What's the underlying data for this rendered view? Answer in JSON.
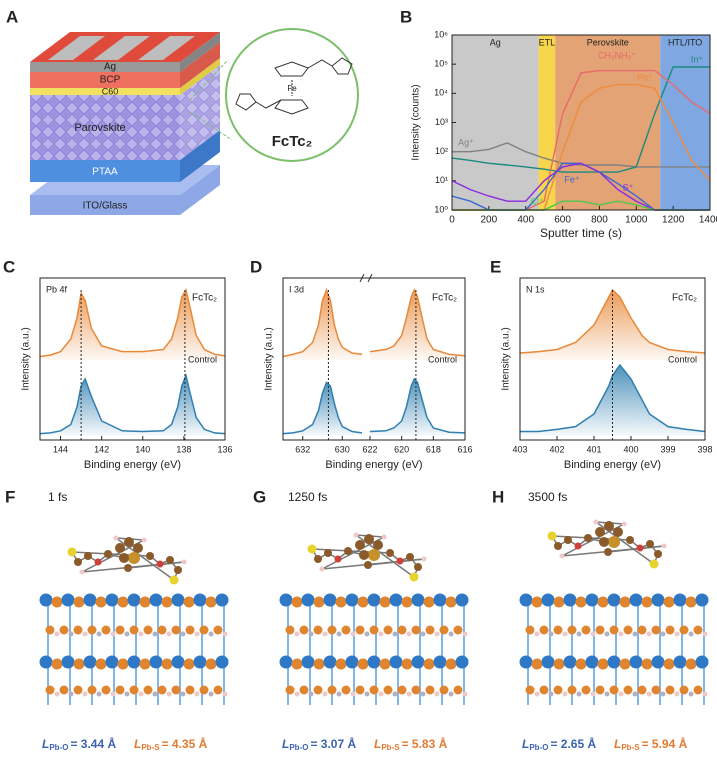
{
  "panel_labels": [
    "A",
    "B",
    "C",
    "D",
    "E",
    "F",
    "G",
    "H"
  ],
  "device": {
    "layers": [
      "Ag",
      "BCP",
      "C60",
      "Parovskite",
      "PTAA",
      "ITO/Glass"
    ],
    "molecule": {
      "atom": "Fe",
      "name": "FcTc₂"
    }
  },
  "chart_data": {
    "type": "line",
    "log_y": true,
    "xlabel": "Sputter time (s)",
    "ylabel": "Intensity (counts)",
    "xlim": [
      0,
      1400
    ],
    "xticks": [
      0,
      200,
      400,
      600,
      800,
      1000,
      1200,
      1400
    ],
    "ylim": [
      1,
      1000000
    ],
    "yticks": [
      {
        "value": 1,
        "label": "10⁰"
      },
      {
        "value": 10,
        "label": "10¹"
      },
      {
        "value": 100,
        "label": "10²"
      },
      {
        "value": 1000,
        "label": "10³"
      },
      {
        "value": 10000,
        "label": "10⁴"
      },
      {
        "value": 100000,
        "label": "10⁵"
      },
      {
        "value": 1000000,
        "label": "10⁶"
      }
    ],
    "regions": [
      {
        "name": "Ag",
        "start": 0,
        "end": 470,
        "color": "#c9c9c9"
      },
      {
        "name": "ETL",
        "start": 470,
        "end": 560,
        "color": "#f8d64c"
      },
      {
        "name": "Perovskite",
        "start": 560,
        "end": 1130,
        "color": "#e3a374"
      },
      {
        "name": "HTL/ITO",
        "start": 1130,
        "end": 1400,
        "color": "#7fa8e2"
      }
    ],
    "x": [
      0,
      100,
      200,
      300,
      400,
      500,
      600,
      700,
      800,
      900,
      1000,
      1100,
      1200,
      1300,
      1400
    ],
    "series": [
      {
        "name": "Ag⁺",
        "color": "#808080",
        "values": [
          100,
          100,
          120,
          200,
          100,
          60,
          40,
          35,
          35,
          35,
          30,
          30,
          30,
          30,
          30
        ]
      },
      {
        "name": "In⁺",
        "color": "#1a8a80",
        "values": [
          60,
          50,
          40,
          35,
          30,
          25,
          20,
          20,
          20,
          20,
          30,
          2000,
          80000,
          80000,
          80000
        ]
      },
      {
        "name": "CH₃NH₃⁺",
        "color": "#e86a6a",
        "values": [
          1,
          1,
          1,
          1,
          1,
          2,
          2000,
          50000,
          60000,
          60000,
          60000,
          60000,
          20000,
          5000,
          2000
        ]
      },
      {
        "name": "Pb⁺",
        "color": "#f08a3c",
        "values": [
          1,
          1,
          1,
          1,
          1,
          1,
          100,
          5000,
          15000,
          20000,
          20000,
          15000,
          1000,
          50,
          10
        ]
      },
      {
        "name": "Fe⁺",
        "color": "#3a6ad0",
        "values": [
          3,
          2,
          1,
          1,
          1,
          5,
          40,
          40,
          20,
          8,
          3,
          1,
          1,
          1,
          1
        ]
      },
      {
        "name": "S⁺",
        "color": "#8a2be2",
        "values": [
          10,
          5,
          3,
          2,
          2,
          10,
          30,
          40,
          20,
          5,
          2,
          1,
          1,
          1,
          1
        ]
      },
      {
        "name": "Cl⁺",
        "color": "#4fc84f",
        "values": [
          1,
          1,
          1,
          1,
          1,
          1,
          2,
          2,
          1.5,
          2,
          1.5,
          1,
          1,
          1,
          1
        ]
      }
    ]
  },
  "xps_panels": [
    {
      "element": "Pb 4f",
      "xlabel": "Binding energy (eV)",
      "ylabel": "Intensity (a.u.)",
      "series_names": [
        "FcTc₂",
        "Control"
      ],
      "colors": [
        "#e8893a",
        "#2f7fb0"
      ],
      "segments": [
        {
          "xlim": [
            145,
            136
          ],
          "xticks": [
            144,
            142,
            140,
            138,
            136
          ],
          "x": [
            145,
            144.5,
            144,
            143.5,
            143.2,
            143,
            142.8,
            142.5,
            142,
            141,
            140,
            139,
            138.6,
            138.3,
            138.1,
            137.9,
            137.7,
            137.4,
            137,
            136.5,
            136
          ],
          "values": [
            [
              0.05,
              0.07,
              0.12,
              0.3,
              0.6,
              0.95,
              0.85,
              0.45,
              0.2,
              0.12,
              0.12,
              0.15,
              0.3,
              0.6,
              0.9,
              1.0,
              0.75,
              0.35,
              0.15,
              0.08,
              0.06
            ],
            [
              0.02,
              0.03,
              0.06,
              0.15,
              0.4,
              0.7,
              0.8,
              0.55,
              0.2,
              0.06,
              0.05,
              0.06,
              0.15,
              0.4,
              0.7,
              0.85,
              0.6,
              0.25,
              0.08,
              0.03,
              0.02
            ]
          ],
          "peak_lines": [
            143,
            137.95
          ]
        }
      ]
    },
    {
      "element": "I 3d",
      "xlabel": "Binding energy (eV)",
      "ylabel": "Intensity (a.u.)",
      "series_names": [
        "FcTc₂",
        "Control"
      ],
      "colors": [
        "#e8893a",
        "#2f7fb0"
      ],
      "segments": [
        {
          "xlim": [
            633,
            629
          ],
          "xticks": [
            632,
            630
          ],
          "x": [
            633,
            632.5,
            632,
            631.5,
            631.2,
            631,
            630.8,
            630.6,
            630.4,
            630.2,
            630,
            629.5,
            629
          ],
          "values": [
            [
              0.05,
              0.08,
              0.12,
              0.25,
              0.5,
              0.85,
              1.0,
              0.85,
              0.5,
              0.3,
              0.18,
              0.1,
              0.08
            ],
            [
              0.02,
              0.03,
              0.06,
              0.15,
              0.35,
              0.6,
              0.75,
              0.7,
              0.45,
              0.25,
              0.12,
              0.05,
              0.03
            ]
          ],
          "peak_lines": [
            630.7
          ]
        },
        {
          "xlim": [
            622,
            616
          ],
          "xticks": [
            622,
            620,
            618,
            616
          ],
          "x": [
            622,
            621,
            620.5,
            620,
            619.7,
            619.4,
            619.2,
            619,
            618.7,
            618.4,
            618,
            617,
            616
          ],
          "values": [
            [
              0.12,
              0.15,
              0.2,
              0.35,
              0.6,
              0.9,
              1.0,
              0.9,
              0.6,
              0.3,
              0.15,
              0.08,
              0.06
            ],
            [
              0.05,
              0.06,
              0.1,
              0.2,
              0.4,
              0.7,
              0.8,
              0.75,
              0.5,
              0.25,
              0.1,
              0.04,
              0.03
            ]
          ],
          "peak_lines": [
            619.1
          ]
        }
      ]
    },
    {
      "element": "N 1s",
      "xlabel": "Binding energy (eV)",
      "ylabel": "Intensity (a.u.)",
      "series_names": [
        "FcTc₂",
        "Control"
      ],
      "colors": [
        "#e8893a",
        "#2f7fb0"
      ],
      "segments": [
        {
          "xlim": [
            403,
            398
          ],
          "xticks": [
            403,
            402,
            401,
            400,
            399,
            398
          ],
          "x": [
            403,
            402.5,
            402,
            401.5,
            401,
            400.8,
            400.6,
            400.5,
            400.3,
            400,
            399.7,
            399.5,
            399,
            398.5,
            398
          ],
          "values": [
            [
              0.1,
              0.12,
              0.15,
              0.25,
              0.5,
              0.7,
              0.9,
              1.0,
              0.9,
              0.6,
              0.35,
              0.25,
              0.15,
              0.12,
              0.1
            ],
            [
              0.05,
              0.05,
              0.08,
              0.12,
              0.3,
              0.5,
              0.7,
              0.85,
              1.0,
              0.8,
              0.5,
              0.3,
              0.12,
              0.08,
              0.05
            ]
          ],
          "peak_lines": [
            400.5
          ]
        }
      ]
    }
  ],
  "snapshots": [
    {
      "time": "1 fs",
      "bonds": [
        {
          "symbol": "L",
          "subscript": "Pb-O",
          "text": "= 3.44 Å",
          "color": "#3b63b0"
        },
        {
          "symbol": "L",
          "subscript": "Pb-S",
          "text": "= 4.35 Å",
          "color": "#e07a30"
        }
      ]
    },
    {
      "time": "1250 fs",
      "bonds": [
        {
          "symbol": "L",
          "subscript": "Pb-O",
          "text": "= 3.07 Å",
          "color": "#3b63b0"
        },
        {
          "symbol": "L",
          "subscript": "Pb-S",
          "text": "= 5.83 Å",
          "color": "#e07a30"
        }
      ]
    },
    {
      "time": "3500 fs",
      "bonds": [
        {
          "symbol": "L",
          "subscript": "Pb-O",
          "text": "= 2.65 Å",
          "color": "#3b63b0"
        },
        {
          "symbol": "L",
          "subscript": "Pb-S",
          "text": "= 5.94 Å",
          "color": "#e07a30"
        }
      ]
    }
  ]
}
